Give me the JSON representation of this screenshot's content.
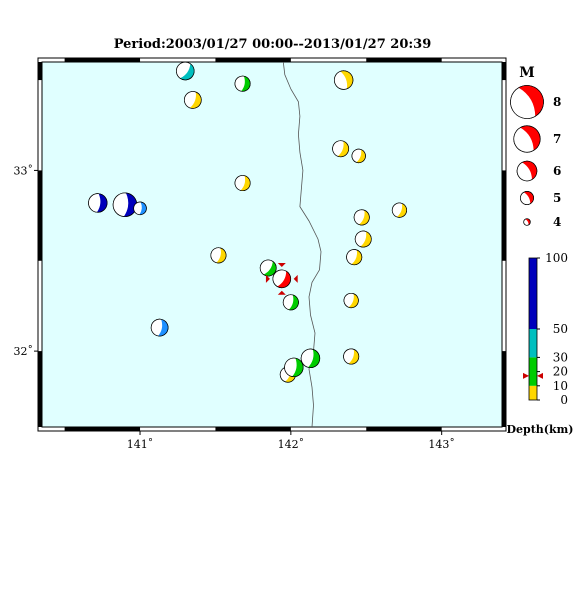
{
  "title": "Period:2003/01/27 00:00--2013/01/27 20:39",
  "map": {
    "lon_range": [
      140.35,
      143.4
    ],
    "lat_range": [
      31.58,
      33.6
    ],
    "lon_ticks": [
      {
        "value": 141,
        "label": "141˚"
      },
      {
        "value": 142,
        "label": "142˚"
      },
      {
        "value": 143,
        "label": "143˚"
      }
    ],
    "lat_ticks": [
      {
        "value": 32,
        "label": "32˚"
      },
      {
        "value": 33,
        "label": "33˚"
      }
    ],
    "ocean_color": "#e0ffff",
    "coastline": [
      [
        141.95,
        33.6
      ],
      [
        141.96,
        33.53
      ],
      [
        142.0,
        33.45
      ],
      [
        142.05,
        33.38
      ],
      [
        142.06,
        33.3
      ],
      [
        142.05,
        33.2
      ],
      [
        142.06,
        33.1
      ],
      [
        142.08,
        33.0
      ],
      [
        142.07,
        32.9
      ],
      [
        142.06,
        32.8
      ],
      [
        142.12,
        32.72
      ],
      [
        142.18,
        32.62
      ],
      [
        142.2,
        32.55
      ],
      [
        142.19,
        32.45
      ],
      [
        142.14,
        32.38
      ],
      [
        142.12,
        32.3
      ],
      [
        142.13,
        32.2
      ],
      [
        142.16,
        32.1
      ],
      [
        142.15,
        32.0
      ],
      [
        142.12,
        31.9
      ],
      [
        142.14,
        31.8
      ],
      [
        142.15,
        31.7
      ],
      [
        142.14,
        31.58
      ]
    ],
    "epicenter": {
      "lon": 141.94,
      "lat": 32.4
    }
  },
  "events": [
    {
      "lon": 141.3,
      "lat": 33.55,
      "mag": 4.9,
      "color": "#00bfbf",
      "rot": 35
    },
    {
      "lon": 141.35,
      "lat": 33.39,
      "mag": 4.8,
      "color": "#ffd700",
      "rot": 20
    },
    {
      "lon": 141.68,
      "lat": 33.48,
      "mag": 4.6,
      "color": "#00cc00",
      "rot": 10
    },
    {
      "lon": 142.35,
      "lat": 33.5,
      "mag": 5.0,
      "color": "#ffd700",
      "rot": -20
    },
    {
      "lon": 142.33,
      "lat": 33.12,
      "mag": 4.7,
      "color": "#ffd700",
      "rot": 20
    },
    {
      "lon": 142.45,
      "lat": 33.08,
      "mag": 4.4,
      "color": "#ffd700",
      "rot": 20
    },
    {
      "lon": 141.68,
      "lat": 32.93,
      "mag": 4.6,
      "color": "#ffd700",
      "rot": 15
    },
    {
      "lon": 140.72,
      "lat": 32.82,
      "mag": 5.0,
      "color": "#0000bb",
      "rot": 5
    },
    {
      "lon": 140.9,
      "lat": 32.81,
      "mag": 5.6,
      "color": "#0000bb",
      "rot": 5
    },
    {
      "lon": 141.0,
      "lat": 32.79,
      "mag": 4.3,
      "color": "#1e90ff",
      "rot": 5
    },
    {
      "lon": 142.47,
      "lat": 32.74,
      "mag": 4.6,
      "color": "#ffd700",
      "rot": 20
    },
    {
      "lon": 142.72,
      "lat": 32.78,
      "mag": 4.5,
      "color": "#ffd700",
      "rot": 20
    },
    {
      "lon": 142.48,
      "lat": 32.62,
      "mag": 4.7,
      "color": "#ffd700",
      "rot": 20
    },
    {
      "lon": 142.42,
      "lat": 32.52,
      "mag": 4.6,
      "color": "#ffd700",
      "rot": 20
    },
    {
      "lon": 141.52,
      "lat": 32.53,
      "mag": 4.6,
      "color": "#ffd700",
      "rot": 15
    },
    {
      "lon": 141.85,
      "lat": 32.46,
      "mag": 4.7,
      "color": "#00cc00",
      "rot": 35
    },
    {
      "lon": 141.94,
      "lat": 32.4,
      "mag": 4.9,
      "color": "#ff0000",
      "rot": 30
    },
    {
      "lon": 142.0,
      "lat": 32.27,
      "mag": 4.6,
      "color": "#00cc00",
      "rot": 15
    },
    {
      "lon": 142.4,
      "lat": 32.28,
      "mag": 4.5,
      "color": "#ffd700",
      "rot": 20
    },
    {
      "lon": 141.13,
      "lat": 32.13,
      "mag": 4.8,
      "color": "#1e90ff",
      "rot": 10
    },
    {
      "lon": 142.4,
      "lat": 31.97,
      "mag": 4.6,
      "color": "#ffd700",
      "rot": 20
    },
    {
      "lon": 142.13,
      "lat": 31.96,
      "mag": 5.0,
      "color": "#00cc00",
      "rot": 15
    },
    {
      "lon": 141.98,
      "lat": 31.87,
      "mag": 4.6,
      "color": "#ffd700",
      "rot": 20
    },
    {
      "lon": 142.02,
      "lat": 31.91,
      "mag": 5.0,
      "color": "#00cc00",
      "rot": 10
    }
  ],
  "mag_legend": {
    "title": "M",
    "items": [
      {
        "mag": 8,
        "label": "8"
      },
      {
        "mag": 7,
        "label": "7"
      },
      {
        "mag": 6,
        "label": "6"
      },
      {
        "mag": 5,
        "label": "5"
      },
      {
        "mag": 4,
        "label": "4"
      }
    ]
  },
  "depth_scale": {
    "label": "Depth(km)",
    "marker_depth": 17,
    "segments": [
      {
        "from": 0,
        "to": 10,
        "color": "#ffd700"
      },
      {
        "from": 10,
        "to": 30,
        "color": "#00cc00"
      },
      {
        "from": 30,
        "to": 50,
        "color": "#00bfbf"
      },
      {
        "from": 50,
        "to": 100,
        "color": "#0000bb"
      }
    ],
    "ticks": [
      {
        "depth": 100,
        "label": "100"
      },
      {
        "depth": 50,
        "label": "50"
      },
      {
        "depth": 30,
        "label": "30"
      },
      {
        "depth": 20,
        "label": "20"
      },
      {
        "depth": 10,
        "label": "10"
      },
      {
        "depth": 0,
        "label": "0"
      }
    ]
  }
}
